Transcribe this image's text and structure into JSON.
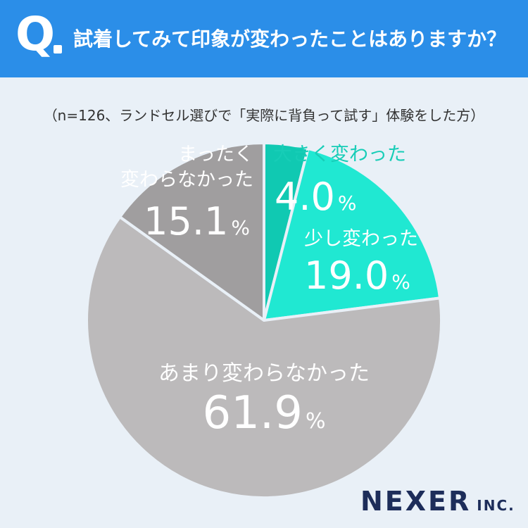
{
  "header": {
    "q_label": "Q",
    "question": "試着してみて印象が変わったことはありますか？"
  },
  "note": "（n=126、ランドセル選びで「実際に背負って試す」体験をした方）",
  "chart_data": {
    "type": "pie",
    "start": "12 o'clock, clockwise",
    "slices": [
      {
        "label": "大きく変わった",
        "value": 4.0,
        "value_text": "4.0",
        "color": "#10c9b2",
        "label_color": "#17cdb7",
        "value_color": "#ffffff"
      },
      {
        "label": "少し変わった",
        "value": 19.0,
        "value_text": "19.0",
        "color": "#20e8d2",
        "label_color": "#ffffff",
        "value_color": "#ffffff"
      },
      {
        "label": "あまり変わらなかった",
        "value": 61.9,
        "value_text": "61.9",
        "color": "#bcbabb",
        "label_color": "#ffffff",
        "value_color": "#ffffff"
      },
      {
        "label": "まったく\n変わらなかった",
        "value": 15.1,
        "value_text": "15.1",
        "color": "#a09e9f",
        "label_color": "#ffffff",
        "value_color": "#ffffff"
      }
    ],
    "unit": "%"
  },
  "logo": {
    "name": "NEXER",
    "suffix": "INC."
  }
}
